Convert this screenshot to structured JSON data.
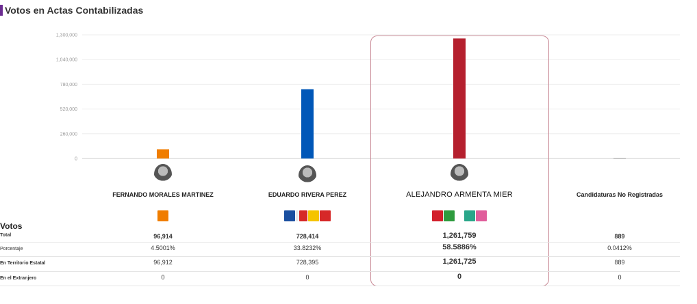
{
  "page_title": "Votos en Actas Contabilizadas",
  "colors": {
    "accent": "#6b2c91",
    "highlight_border": "#c98a96"
  },
  "chart_data": {
    "type": "bar",
    "categories": [
      "FERNANDO MORALES MARTINEZ",
      "EDUARDO RIVERA PEREZ",
      "ALEJANDRO ARMENTA MIER",
      "Candidaturas No Registradas"
    ],
    "values": [
      96914,
      728414,
      1261759,
      889
    ],
    "colors": [
      "#f07d00",
      "#0057b8",
      "#b5202e",
      "#aaaaaa"
    ],
    "ylim": [
      0,
      1300000
    ],
    "yticks": [
      0,
      260000,
      520000,
      780000,
      1040000,
      1300000
    ],
    "ytick_labels": [
      "0",
      "260,000",
      "520,000",
      "780,000",
      "1,040,000",
      "1,300,000"
    ],
    "grid": true,
    "highlighted_index": 2
  },
  "candidates": [
    {
      "name": "FERNANDO MORALES MARTINEZ",
      "logo": "mc-orange-logo"
    },
    {
      "name": "EDUARDO RIVERA PEREZ",
      "logo": "pan-pri-prd-psi-logos"
    },
    {
      "name": "ALEJANDRO ARMENTA MIER",
      "logo": "pt-pvem-morena-logos"
    },
    {
      "name": "Candidaturas No Registradas",
      "logo": ""
    }
  ],
  "votes_section_title": "Votos",
  "table": {
    "rows": [
      {
        "label": "Total",
        "bold": true,
        "values": [
          "96,914",
          "728,414",
          "1,261,759",
          "889"
        ]
      },
      {
        "label": "Porcentaje",
        "bold": false,
        "values": [
          "4.5001%",
          "33.8232%",
          "58.5886%",
          "0.0412%"
        ]
      },
      {
        "label": "En Territorio Estatal",
        "bold": true,
        "values": [
          "96,912",
          "728,395",
          "1,261,725",
          "889"
        ]
      },
      {
        "label": "En el Extranjero",
        "bold": true,
        "values": [
          "0",
          "0",
          "0",
          "0"
        ]
      }
    ]
  }
}
